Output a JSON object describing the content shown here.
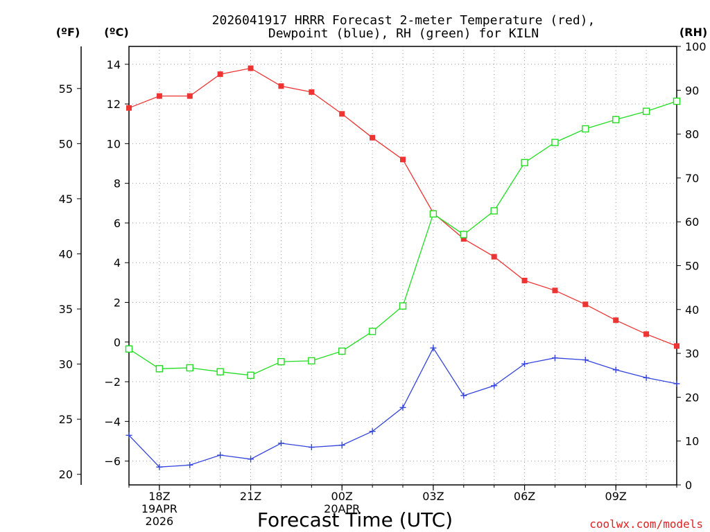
{
  "chart_data": {
    "type": "line",
    "title_lines": [
      "2026041917 HRRR Forecast 2-meter Temperature (red),",
      "Dewpoint (blue), RH (green) for KILN"
    ],
    "xlabel": "Forecast Time (UTC)",
    "credit": "coolwx.com/models",
    "units": {
      "fahrenheit": "(ºF)",
      "celsius": "(ºC)",
      "rh": "(RH)"
    },
    "x_hours": [
      17,
      18,
      19,
      20,
      21,
      22,
      23,
      24,
      25,
      26,
      27,
      28,
      29,
      30,
      31,
      32,
      33,
      34,
      35
    ],
    "x_ticks": [
      {
        "hour": 18,
        "label": "18Z",
        "sub": [
          "19APR",
          "2026"
        ]
      },
      {
        "hour": 21,
        "label": "21Z",
        "sub": []
      },
      {
        "hour": 24,
        "label": "00Z",
        "sub": [
          "20APR"
        ]
      },
      {
        "hour": 27,
        "label": "03Z",
        "sub": []
      },
      {
        "hour": 30,
        "label": "06Z",
        "sub": []
      },
      {
        "hour": 33,
        "label": "09Z",
        "sub": []
      }
    ],
    "xlim": [
      17,
      35
    ],
    "celsius_axis": {
      "ylim": [
        -7.2,
        14.9
      ],
      "ticks": [
        14,
        12,
        10,
        8,
        6,
        4,
        2,
        0,
        -2,
        -4,
        -6
      ]
    },
    "fahrenheit_axis": {
      "ticks": [
        55,
        50,
        45,
        40,
        35,
        30,
        25,
        20
      ]
    },
    "rh_axis": {
      "ylim": [
        0,
        100
      ],
      "ticks": [
        100,
        90,
        80,
        70,
        60,
        50,
        40,
        30,
        20,
        10,
        0
      ]
    },
    "series": [
      {
        "name": "2-meter Temperature",
        "color": "#ee3333",
        "marker": "filled-square",
        "axis": "celsius",
        "values": [
          11.8,
          12.4,
          12.4,
          13.5,
          13.8,
          12.9,
          12.6,
          11.5,
          10.3,
          9.2,
          6.5,
          5.2,
          4.3,
          3.1,
          2.6,
          1.9,
          1.1,
          0.4,
          -0.2
        ]
      },
      {
        "name": "Dewpoint",
        "color": "#3344dd",
        "marker": "plus",
        "axis": "celsius",
        "values": [
          -4.7,
          -6.3,
          -6.2,
          -5.7,
          -5.9,
          -5.1,
          -5.3,
          -5.2,
          -4.5,
          -3.3,
          -0.3,
          -2.7,
          -2.2,
          -1.1,
          -0.8,
          -0.9,
          -1.4,
          -1.8,
          -2.1
        ]
      },
      {
        "name": "RH",
        "color": "#22dd22",
        "marker": "open-square",
        "axis": "rh",
        "values": [
          31,
          26.5,
          26.7,
          25.8,
          25,
          28.1,
          28.3,
          30.5,
          35,
          40.8,
          61.8,
          57.1,
          62.5,
          73.5,
          78.1,
          81.2,
          83.3,
          85.2,
          87.5
        ]
      }
    ]
  }
}
